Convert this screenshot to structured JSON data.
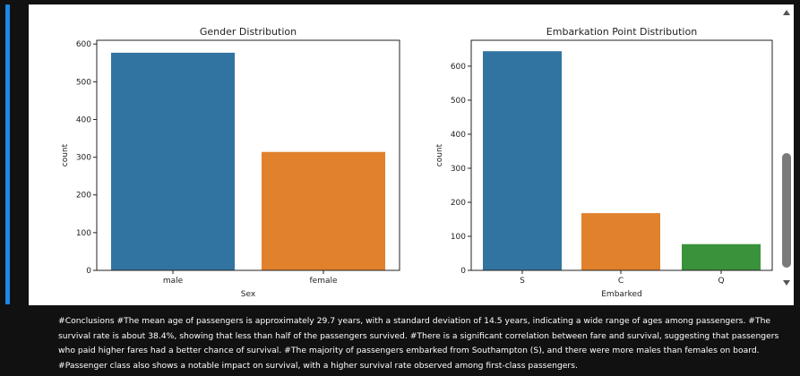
{
  "charts": {
    "chart_data": [
      {
        "type": "bar",
        "title": "Gender Distribution",
        "xlabel": "Sex",
        "ylabel": "count",
        "categories": [
          "male",
          "female"
        ],
        "values": [
          577,
          314
        ],
        "colors": [
          "#3274a1",
          "#e1812c"
        ],
        "ylim": [
          0,
          610
        ],
        "yticks": [
          0,
          100,
          200,
          300,
          400,
          500,
          600
        ],
        "grid": false
      },
      {
        "type": "bar",
        "title": "Embarkation Point Distribution",
        "xlabel": "Embarked",
        "ylabel": "count",
        "categories": [
          "S",
          "C",
          "Q"
        ],
        "values": [
          644,
          168,
          77
        ],
        "colors": [
          "#3274a1",
          "#e1812c",
          "#3a923a"
        ],
        "ylim": [
          0,
          676
        ],
        "yticks": [
          0,
          100,
          200,
          300,
          400,
          500,
          600
        ],
        "grid": false
      }
    ]
  },
  "conclusion": {
    "text": "#Conclusions #The mean age of passengers is approximately 29.7 years, with a standard deviation of 14.5 years, indicating a wide range of ages among passengers. #The survival rate is about 38.4%, showing that less than half of the passengers survived. #There is a significant correlation between fare and survival, suggesting that passengers who paid higher fares had a better chance of survival. #The majority of passengers embarked from Southampton (S), and there were more males than females on board. #Passenger class also shows a notable impact on survival, with a higher survival rate observed among first-class passengers."
  },
  "icons": {
    "scroll_up": "scroll-up-arrow-icon",
    "scroll_down": "scroll-down-arrow-icon"
  }
}
